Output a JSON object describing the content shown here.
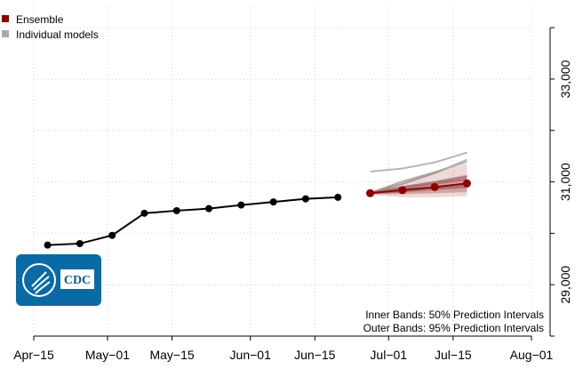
{
  "chart_data": {
    "type": "line",
    "x_ticks": [
      "Apr−15",
      "May−01",
      "May−15",
      "Jun−01",
      "Jun−15",
      "Jul−01",
      "Jul−15",
      "Aug−01"
    ],
    "y_ticks": [
      "29,000",
      "31,000",
      "33,000"
    ],
    "ylim": [
      28000,
      34400
    ],
    "grid": true,
    "legend": {
      "position": "top-left",
      "entries": [
        {
          "label": "Ensemble",
          "color": "#8b0000"
        },
        {
          "label": "Individual models",
          "color": "#aaaaaa"
        }
      ]
    },
    "observed": {
      "color": "#000000",
      "points": [
        {
          "x": "2020-04-18",
          "y": 29770
        },
        {
          "x": "2020-04-25",
          "y": 29800
        },
        {
          "x": "2020-05-02",
          "y": 29960
        },
        {
          "x": "2020-05-09",
          "y": 30390
        },
        {
          "x": "2020-05-16",
          "y": 30440
        },
        {
          "x": "2020-05-23",
          "y": 30480
        },
        {
          "x": "2020-05-30",
          "y": 30550
        },
        {
          "x": "2020-06-06",
          "y": 30610
        },
        {
          "x": "2020-06-13",
          "y": 30670
        },
        {
          "x": "2020-06-20",
          "y": 30700
        }
      ]
    },
    "ensemble": {
      "color": "#8b0000",
      "points": [
        {
          "x": "2020-06-27",
          "y": 30780,
          "lo50": 30760,
          "hi50": 30800,
          "lo95": 30740,
          "hi95": 30820
        },
        {
          "x": "2020-07-04",
          "y": 30840,
          "lo50": 30760,
          "hi50": 30920,
          "lo95": 30700,
          "hi95": 31000
        },
        {
          "x": "2020-07-11",
          "y": 30900,
          "lo50": 30780,
          "hi50": 31020,
          "lo95": 30700,
          "hi95": 31200
        },
        {
          "x": "2020-07-18",
          "y": 30970,
          "lo50": 30800,
          "hi50": 31140,
          "lo95": 30720,
          "hi95": 31350
        }
      ]
    },
    "individual_models": {
      "color": "#aaaaaa",
      "x": [
        "2020-06-27",
        "2020-07-04",
        "2020-07-11",
        "2020-07-18"
      ],
      "series": [
        {
          "values": [
            30780,
            30870,
            30960,
            31050
          ]
        },
        {
          "values": [
            30780,
            30900,
            30990,
            31100
          ]
        },
        {
          "values": [
            30780,
            30960,
            31170,
            31430
          ]
        },
        {
          "values": [
            31200,
            31260,
            31380,
            31570
          ]
        },
        {
          "values": [
            30780,
            31010,
            31190,
            31390
          ]
        },
        {
          "values": [
            30780,
            30810,
            30860,
            30900
          ]
        },
        {
          "values": [
            30790,
            30830,
            30880,
            30930
          ]
        }
      ]
    },
    "annotations": [
      "Inner Bands: 50% Prediction Intervals",
      "Outer Bands: 95% Prediction Intervals"
    ]
  },
  "logo": {
    "text": "CDC",
    "background": "#0a6aa6"
  }
}
